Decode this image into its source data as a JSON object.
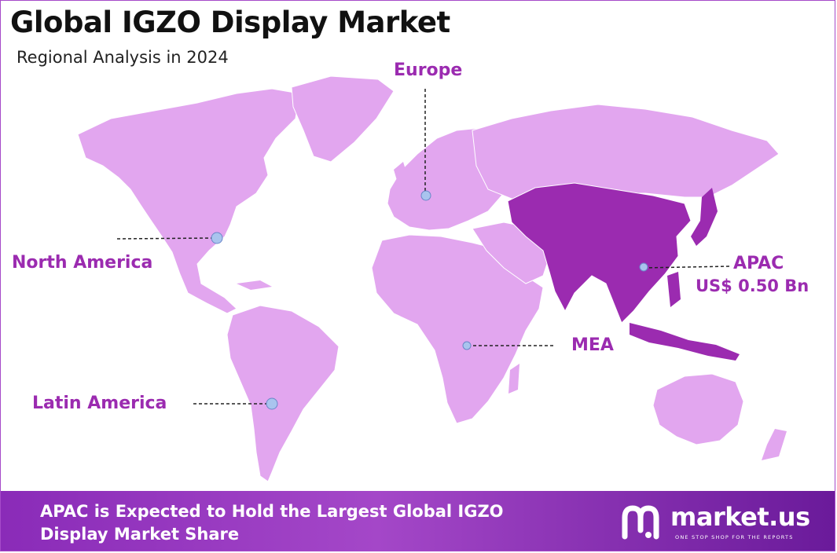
{
  "title": "Global IGZO Display Market",
  "subtitle": "Regional Analysis in 2024",
  "regions": {
    "europe": "Europe",
    "north_america": "North America",
    "apac": "APAC",
    "apac_value": "US$ 0.50 Bn",
    "mea": "MEA",
    "latin_america": "Latin America"
  },
  "highlight_region": "APAC",
  "colors": {
    "land": "#e2a6ef",
    "highlight": "#9b2bb0",
    "label": "#9b2bb0",
    "marker": "#a9c4ee",
    "footer_start": "#8a2bb8",
    "footer_end": "#6a1a9a"
  },
  "footer": {
    "headline": "APAC is Expected to Hold the Largest Global IGZO Display Market Share"
  },
  "logo": {
    "name": "market.us",
    "tagline": "ONE STOP SHOP FOR THE REPORTS",
    "icon": "market-us-logo-icon"
  }
}
